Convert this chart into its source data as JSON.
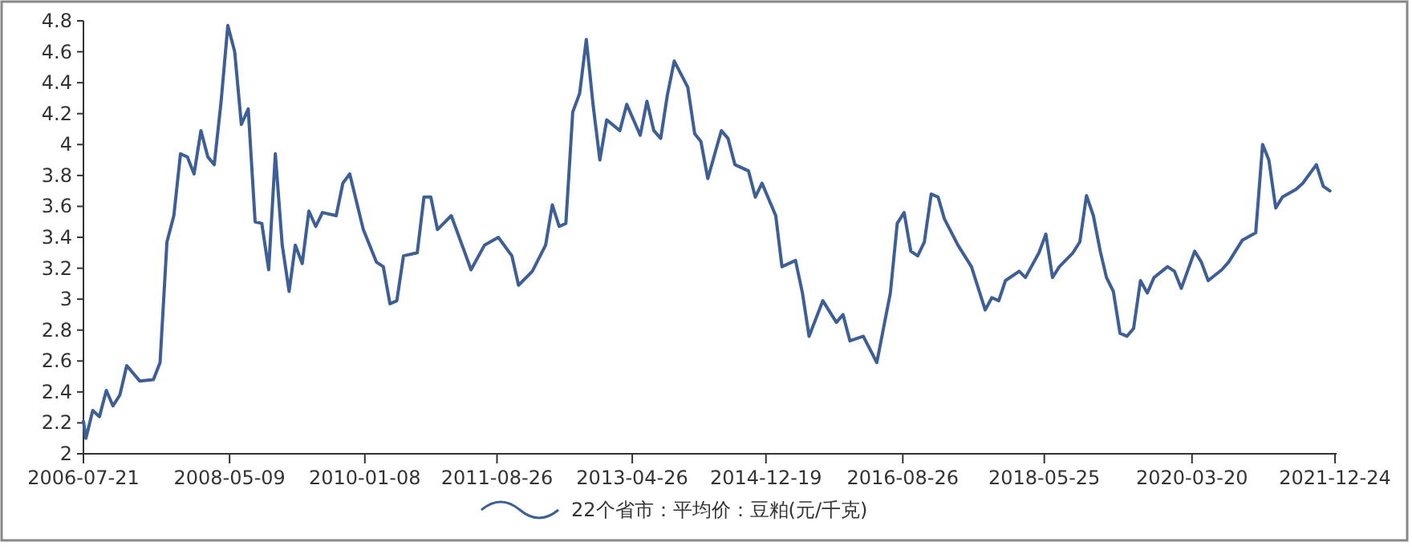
{
  "chart_data": {
    "type": "line",
    "legend": "bottom",
    "ylim": [
      2,
      4.8
    ],
    "yticks": [
      2,
      2.2,
      2.4,
      2.6,
      2.8,
      3,
      3.2,
      3.4,
      3.6,
      3.8,
      4,
      4.2,
      4.4,
      4.6,
      4.8
    ],
    "xlim": [
      "2006-07-21",
      "2021-12-31"
    ],
    "xticks": [
      "2006-07-21",
      "2008-05-09",
      "2010-01-08",
      "2011-08-26",
      "2013-04-26",
      "2014-12-19",
      "2016-08-26",
      "2018-05-25",
      "2020-03-20",
      "2021-12-24"
    ],
    "x": [
      "2006-07-21",
      "2006-08",
      "2006-09",
      "2006-10",
      "2006-11",
      "2006-12",
      "2007-01",
      "2007-02",
      "2007-04",
      "2007-06",
      "2007-07",
      "2007-08",
      "2007-09",
      "2007-10",
      "2007-11",
      "2007-12",
      "2008-01",
      "2008-02",
      "2008-03",
      "2008-04",
      "2008-05",
      "2008-06",
      "2008-07",
      "2008-08",
      "2008-09",
      "2008-10",
      "2008-11",
      "2008-12",
      "2009-01",
      "2009-02",
      "2009-03",
      "2009-04",
      "2009-05",
      "2009-06",
      "2009-07",
      "2009-09",
      "2009-10",
      "2009-11",
      "2010-01",
      "2010-03",
      "2010-04",
      "2010-05",
      "2010-06",
      "2010-07",
      "2010-09",
      "2010-10",
      "2010-11",
      "2010-12",
      "2011-02",
      "2011-04",
      "2011-05",
      "2011-07",
      "2011-09",
      "2011-11",
      "2011-12",
      "2012-02",
      "2012-04",
      "2012-05",
      "2012-06",
      "2012-07",
      "2012-08",
      "2012-09",
      "2012-10",
      "2012-11",
      "2012-12",
      "2013-01",
      "2013-03",
      "2013-04",
      "2013-06",
      "2013-07",
      "2013-08",
      "2013-09",
      "2013-10",
      "2013-11",
      "2014-01",
      "2014-02",
      "2014-03",
      "2014-04",
      "2014-06",
      "2014-07",
      "2014-08",
      "2014-10",
      "2014-11",
      "2014-12",
      "2015-02",
      "2015-03",
      "2015-05",
      "2015-06",
      "2015-07",
      "2015-09",
      "2015-11",
      "2015-12",
      "2016-01",
      "2016-03",
      "2016-05",
      "2016-07",
      "2016-08",
      "2016-09",
      "2016-10",
      "2016-11",
      "2016-12",
      "2017-01",
      "2017-02",
      "2017-03",
      "2017-05",
      "2017-07",
      "2017-09",
      "2017-10",
      "2017-11",
      "2017-12",
      "2018-02",
      "2018-03",
      "2018-05",
      "2018-06",
      "2018-07",
      "2018-08",
      "2018-10",
      "2018-11",
      "2018-12",
      "2019-01",
      "2019-02",
      "2019-03",
      "2019-04",
      "2019-05",
      "2019-06",
      "2019-07",
      "2019-08",
      "2019-09",
      "2019-10",
      "2019-12",
      "2020-01",
      "2020-02",
      "2020-04",
      "2020-05",
      "2020-06",
      "2020-08",
      "2020-09",
      "2020-11",
      "2021-01",
      "2021-02",
      "2021-03",
      "2021-04",
      "2021-05",
      "2021-07",
      "2021-08",
      "2021-10",
      "2021-11",
      "2021-12"
    ],
    "series": [
      {
        "name": "22个省市：平均价：豆粕(元/千克)",
        "color": "#3d5f95",
        "values": [
          2.21,
          2.1,
          2.28,
          2.24,
          2.41,
          2.31,
          2.38,
          2.57,
          2.47,
          2.48,
          2.59,
          3.37,
          3.54,
          3.94,
          3.92,
          3.81,
          4.09,
          3.92,
          3.87,
          4.28,
          4.77,
          4.6,
          4.13,
          4.23,
          3.5,
          3.49,
          3.19,
          3.94,
          3.35,
          3.05,
          3.35,
          3.23,
          3.57,
          3.47,
          3.56,
          3.54,
          3.75,
          3.81,
          3.45,
          3.24,
          3.21,
          2.97,
          2.99,
          3.28,
          3.3,
          3.66,
          3.66,
          3.45,
          3.54,
          3.31,
          3.19,
          3.35,
          3.4,
          3.28,
          3.09,
          3.18,
          3.35,
          3.61,
          3.47,
          3.49,
          4.21,
          4.33,
          4.68,
          4.25,
          3.9,
          4.16,
          4.09,
          4.26,
          4.06,
          4.28,
          4.09,
          4.04,
          4.32,
          4.54,
          4.37,
          4.07,
          4.02,
          3.78,
          4.09,
          4.04,
          3.87,
          3.83,
          3.66,
          3.75,
          3.54,
          3.21,
          3.25,
          3.04,
          2.76,
          2.99,
          2.85,
          2.9,
          2.73,
          2.76,
          2.59,
          3.04,
          3.49,
          3.56,
          3.31,
          3.28,
          3.37,
          3.68,
          3.66,
          3.52,
          3.35,
          3.21,
          2.93,
          3.01,
          2.99,
          3.12,
          3.18,
          3.14,
          3.3,
          3.42,
          3.14,
          3.21,
          3.3,
          3.37,
          3.67,
          3.54,
          3.31,
          3.14,
          3.05,
          2.78,
          2.76,
          2.81,
          3.12,
          3.04,
          3.14,
          3.21,
          3.18,
          3.07,
          3.31,
          3.24,
          3.12,
          3.19,
          3.24,
          3.38,
          3.43,
          4.0,
          3.9,
          3.59,
          3.66,
          3.71,
          3.75,
          3.87,
          3.73,
          3.7
        ]
      }
    ]
  }
}
